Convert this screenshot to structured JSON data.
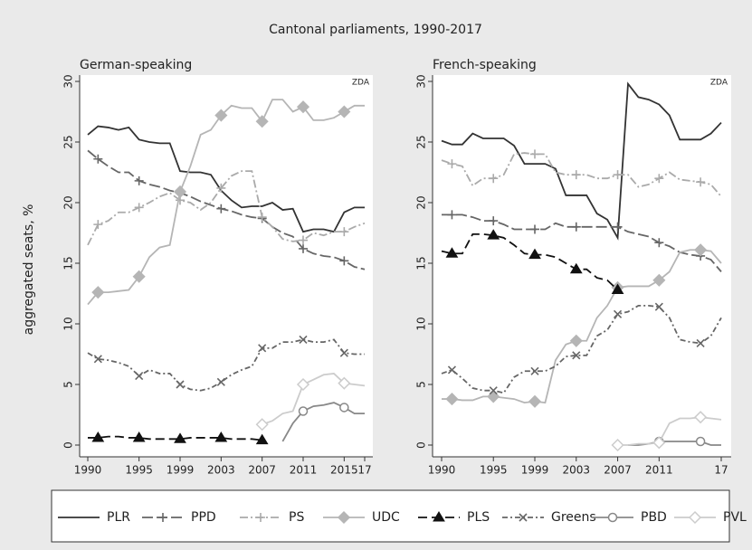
{
  "title": "Cantonal parliaments, 1990-2017",
  "chart_data": [
    {
      "type": "line",
      "subtitle": "German-speaking",
      "annotation": "ZDA",
      "ylabel": "aggregated seats, %",
      "x": [
        1990,
        1991,
        1992,
        1993,
        1994,
        1995,
        1996,
        1997,
        1998,
        1999,
        2000,
        2001,
        2002,
        2003,
        2004,
        2005,
        2006,
        2007,
        2008,
        2009,
        2010,
        2011,
        2012,
        2013,
        2014,
        2015,
        2016,
        2017
      ],
      "xlim": [
        1990,
        2017
      ],
      "xticks": [
        1990,
        1995,
        1999,
        2003,
        2007,
        2011,
        2015,
        {
          "value": 2017,
          "label": "17"
        }
      ],
      "ylim": [
        0,
        30
      ],
      "yticks": [
        0,
        5,
        10,
        15,
        20,
        25,
        30
      ],
      "grid": false,
      "series": [
        {
          "name": "PLR",
          "color": "#333333",
          "dash": "none",
          "marker": "none",
          "values": [
            25.6,
            26.3,
            26.2,
            26.0,
            26.2,
            25.2,
            25.0,
            24.9,
            24.9,
            22.6,
            22.5,
            22.5,
            22.3,
            21.0,
            20.2,
            19.6,
            19.7,
            19.7,
            20.0,
            19.4,
            19.5,
            17.6,
            17.8,
            17.8,
            17.6,
            19.2,
            19.6,
            19.6
          ]
        },
        {
          "name": "PPD",
          "color": "#666666",
          "dash": "12 4",
          "marker": "plus",
          "values": [
            24.3,
            23.6,
            23.0,
            22.5,
            22.5,
            21.8,
            21.5,
            21.3,
            21.0,
            20.8,
            20.5,
            20.1,
            19.8,
            19.5,
            19.3,
            19.0,
            18.8,
            18.7,
            18.0,
            17.5,
            17.2,
            16.2,
            15.8,
            15.6,
            15.5,
            15.2,
            14.7,
            14.5
          ]
        },
        {
          "name": "PS",
          "color": "#aaaaaa",
          "dash": "9 3 2 3",
          "marker": "plus",
          "values": [
            16.5,
            18.2,
            18.5,
            19.2,
            19.2,
            19.6,
            20.0,
            20.5,
            20.8,
            20.2,
            20.0,
            19.4,
            20.0,
            21.2,
            22.2,
            22.6,
            22.6,
            18.8,
            18.0,
            17.0,
            16.8,
            16.9,
            17.5,
            17.3,
            17.6,
            17.6,
            18.0,
            18.3
          ]
        },
        {
          "name": "UDC",
          "color": "#b5b5b5",
          "dash": "none",
          "marker": "diamond",
          "values": [
            11.6,
            12.6,
            12.6,
            12.7,
            12.8,
            13.9,
            15.5,
            16.3,
            16.5,
            20.9,
            23.0,
            25.6,
            26.0,
            27.2,
            28.0,
            27.8,
            27.8,
            26.7,
            28.5,
            28.5,
            27.5,
            27.9,
            26.8,
            26.8,
            27.0,
            27.5,
            28.0,
            28.0
          ]
        },
        {
          "name": "PLS",
          "color": "#111111",
          "dash": "10 5",
          "marker": "triangle",
          "values": [
            0.6,
            0.6,
            0.7,
            0.7,
            0.6,
            0.6,
            0.5,
            0.5,
            0.5,
            0.5,
            0.6,
            0.6,
            0.6,
            0.6,
            0.5,
            0.5,
            0.5,
            0.4,
            null,
            null,
            null,
            null,
            null,
            null,
            null,
            null,
            null,
            null
          ]
        },
        {
          "name": "Greens",
          "color": "#666666",
          "dash": "6 3 2 3",
          "marker": "cross",
          "values": [
            7.6,
            7.1,
            7.0,
            6.8,
            6.5,
            5.7,
            6.2,
            5.9,
            5.9,
            5.0,
            4.6,
            4.5,
            4.7,
            5.2,
            5.8,
            6.2,
            6.5,
            8.0,
            8.0,
            8.5,
            8.5,
            8.7,
            8.5,
            8.5,
            8.7,
            7.6,
            7.5,
            7.5
          ]
        },
        {
          "name": "PBD",
          "color": "#888888",
          "dash": "none",
          "marker": "circle",
          "values": [
            null,
            null,
            null,
            null,
            null,
            null,
            null,
            null,
            null,
            null,
            null,
            null,
            null,
            null,
            null,
            null,
            null,
            null,
            null,
            0.3,
            1.8,
            2.8,
            3.2,
            3.3,
            3.5,
            3.1,
            2.6,
            2.6
          ]
        },
        {
          "name": "PVL",
          "color": "#cccccc",
          "dash": "none",
          "marker": "hdiamond",
          "values": [
            null,
            null,
            null,
            null,
            null,
            null,
            null,
            null,
            null,
            null,
            null,
            null,
            null,
            null,
            null,
            null,
            null,
            1.7,
            2.0,
            2.6,
            2.8,
            5.0,
            5.4,
            5.8,
            5.9,
            5.1,
            5.0,
            4.9
          ]
        }
      ]
    },
    {
      "type": "line",
      "subtitle": "French-speaking",
      "annotation": "ZDA",
      "x": [
        1990,
        1991,
        1992,
        1993,
        1994,
        1995,
        1996,
        1997,
        1998,
        1999,
        2000,
        2001,
        2002,
        2003,
        2004,
        2005,
        2006,
        2007,
        2008,
        2009,
        2010,
        2011,
        2012,
        2013,
        2014,
        2015,
        2016,
        2017
      ],
      "xlim": [
        1990,
        2017
      ],
      "xticks": [
        1990,
        1995,
        1999,
        2003,
        2007,
        2011,
        {
          "value": 2017,
          "label": "17"
        }
      ],
      "ylim": [
        0,
        30
      ],
      "yticks": [
        0,
        5,
        10,
        15,
        20,
        25,
        30
      ],
      "grid": false,
      "series": [
        {
          "name": "PLR",
          "color": "#333333",
          "dash": "none",
          "marker": "none",
          "values": [
            25.1,
            24.8,
            24.8,
            25.7,
            25.3,
            25.3,
            25.3,
            24.7,
            23.2,
            23.2,
            23.2,
            22.8,
            20.6,
            20.6,
            20.6,
            19.1,
            18.6,
            17.1,
            29.8,
            28.7,
            28.5,
            28.1,
            27.2,
            25.2,
            25.2,
            25.2,
            25.7,
            26.6
          ]
        },
        {
          "name": "PPD",
          "color": "#666666",
          "dash": "12 4",
          "marker": "plus",
          "values": [
            19.0,
            19.0,
            19.0,
            18.8,
            18.5,
            18.5,
            18.2,
            17.8,
            17.8,
            17.8,
            17.8,
            18.3,
            18.0,
            18.0,
            18.0,
            18.0,
            18.0,
            18.0,
            17.6,
            17.4,
            17.2,
            16.7,
            16.4,
            15.9,
            15.7,
            15.6,
            15.3,
            14.3
          ]
        },
        {
          "name": "PS",
          "color": "#aaaaaa",
          "dash": "9 3 2 3",
          "marker": "plus",
          "values": [
            23.5,
            23.2,
            23.0,
            21.4,
            22.0,
            22.0,
            22.3,
            24.0,
            24.1,
            24.0,
            24.0,
            22.5,
            22.3,
            22.3,
            22.3,
            22.0,
            22.0,
            22.3,
            22.3,
            21.3,
            21.5,
            22.0,
            22.5,
            21.9,
            21.8,
            21.7,
            21.5,
            20.5
          ]
        },
        {
          "name": "UDC",
          "color": "#b5b5b5",
          "dash": "none",
          "marker": "diamond",
          "values": [
            3.8,
            3.8,
            3.7,
            3.7,
            4.0,
            4.0,
            3.9,
            3.8,
            3.5,
            3.6,
            3.5,
            7.0,
            8.3,
            8.6,
            8.6,
            10.5,
            11.5,
            13.0,
            13.1,
            13.1,
            13.1,
            13.6,
            14.3,
            15.9,
            16.1,
            16.1,
            16.0,
            15.0
          ]
        },
        {
          "name": "PLS",
          "color": "#111111",
          "dash": "10 5",
          "marker": "triangle",
          "values": [
            16.0,
            15.8,
            15.8,
            17.4,
            17.4,
            17.3,
            17.1,
            16.5,
            15.8,
            15.7,
            15.7,
            15.5,
            15.0,
            14.5,
            14.5,
            13.8,
            13.6,
            12.8,
            null,
            null,
            null,
            null,
            null,
            null,
            null,
            null,
            null,
            null
          ]
        },
        {
          "name": "Greens",
          "color": "#666666",
          "dash": "6 3 2 3",
          "marker": "cross",
          "values": [
            5.9,
            6.2,
            5.5,
            4.7,
            4.5,
            4.5,
            4.3,
            5.6,
            6.1,
            6.1,
            6.1,
            6.5,
            7.3,
            7.4,
            7.4,
            9.0,
            9.5,
            10.8,
            11.0,
            11.5,
            11.5,
            11.4,
            10.5,
            8.7,
            8.5,
            8.4,
            9.0,
            10.5
          ]
        },
        {
          "name": "PBD",
          "color": "#888888",
          "dash": "none",
          "marker": "circle",
          "values": [
            null,
            null,
            null,
            null,
            null,
            null,
            null,
            null,
            null,
            null,
            null,
            null,
            null,
            null,
            null,
            null,
            null,
            null,
            0,
            0,
            0.1,
            0.3,
            0.3,
            0.3,
            0.3,
            0.3,
            0,
            0
          ]
        },
        {
          "name": "PVL",
          "color": "#cccccc",
          "dash": "none",
          "marker": "hdiamond",
          "values": [
            null,
            null,
            null,
            null,
            null,
            null,
            null,
            null,
            null,
            null,
            null,
            null,
            null,
            null,
            null,
            null,
            null,
            0,
            0,
            0.1,
            0.1,
            0.2,
            1.8,
            2.2,
            2.2,
            2.3,
            2.2,
            2.1
          ]
        }
      ]
    }
  ]
}
